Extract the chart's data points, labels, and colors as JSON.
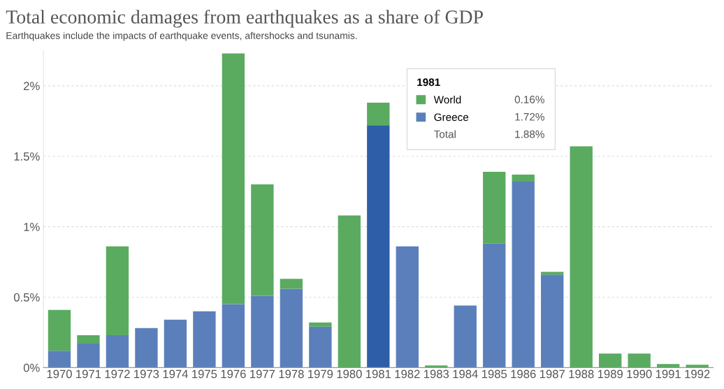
{
  "chart_data": {
    "type": "bar",
    "title": "Total economic damages from earthquakes as a share of GDP",
    "subtitle": "Earthquakes include the impacts of earthquake events, aftershocks and tsunamis.",
    "categories": [
      "1970",
      "1971",
      "1972",
      "1973",
      "1974",
      "1975",
      "1976",
      "1977",
      "1978",
      "1979",
      "1980",
      "1981",
      "1982",
      "1983",
      "1984",
      "1985",
      "1986",
      "1987",
      "1988",
      "1989",
      "1990",
      "1991",
      "1992"
    ],
    "stacked": true,
    "series": [
      {
        "name": "Greece",
        "color": "#5b7fbb",
        "colors": [
          "#5b7fbb",
          "#5b7fbb",
          "#5b7fbb",
          "#5b7fbb",
          "#5b7fbb",
          "#5b7fbb",
          "#5b7fbb",
          "#5b7fbb",
          "#5b7fbb",
          "#5b7fbb",
          "#5b7fbb",
          "#2f5ea8",
          "#5b7fbb",
          "#5b7fbb",
          "#5b7fbb",
          "#5b7fbb",
          "#5b7fbb",
          "#5b7fbb",
          "#5b7fbb",
          "#5b7fbb",
          "#5b7fbb",
          "#5b7fbb",
          "#5b7fbb"
        ],
        "values": [
          0.12,
          0.17,
          0.23,
          0.28,
          0.34,
          0.4,
          0.45,
          0.51,
          0.56,
          0.29,
          0,
          1.72,
          0.86,
          0,
          0.44,
          0.88,
          1.32,
          0.66,
          0,
          0,
          0,
          0,
          0
        ]
      },
      {
        "name": "World",
        "color": "#5aab60",
        "values": [
          0.29,
          0.06,
          0.63,
          0,
          0,
          0,
          1.78,
          0.79,
          0.07,
          0.03,
          1.08,
          0.16,
          0,
          0.015,
          0,
          0.51,
          0.05,
          0.02,
          1.57,
          0.1,
          0.1,
          0.025,
          0.02
        ]
      }
    ],
    "ylim": [
      0,
      2.25
    ],
    "yticks": [
      {
        "value": 0,
        "label": "0%"
      },
      {
        "value": 0.5,
        "label": "0.5%"
      },
      {
        "value": 1,
        "label": "1%"
      },
      {
        "value": 1.5,
        "label": "1.5%"
      },
      {
        "value": 2,
        "label": "2%"
      }
    ],
    "grid": "y",
    "legend": "top",
    "legend_title": "1981",
    "annotations": [
      "0.16%",
      "1.72%",
      "Total",
      "1.88%"
    ]
  }
}
